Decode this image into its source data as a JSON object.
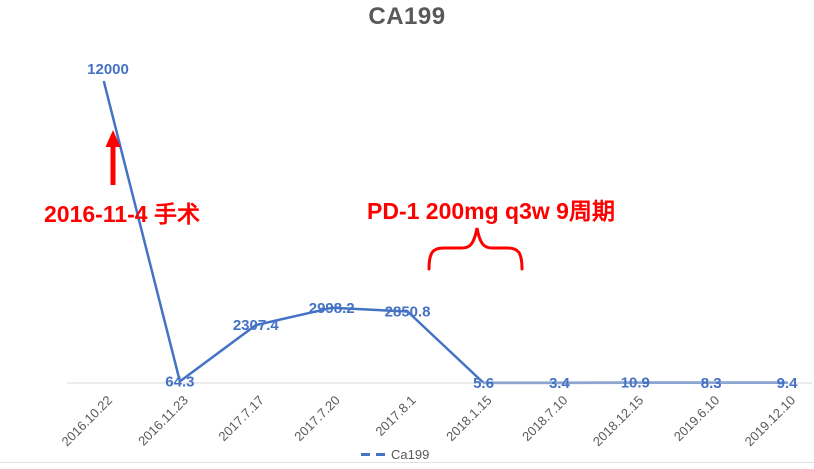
{
  "title": "CA199",
  "colors": {
    "series_line": "#4472C4",
    "data_label": "#4472C4",
    "axis_line": "#D9D9D9",
    "title_text": "#595959",
    "tick_text": "#595959",
    "annotation_red": "#FF0000",
    "legend_text": "#595959"
  },
  "chart_data": {
    "type": "line",
    "title": "CA199",
    "categories": [
      "2016.10.22",
      "2016.11.23",
      "2017.7.17",
      "2017.7.20",
      "2017.8.1",
      "2018.1.15",
      "2018.7.10",
      "2018.12.15",
      "2019.6.10",
      "2019.12.10"
    ],
    "series": [
      {
        "name": "Ca199",
        "values": [
          12000,
          64.3,
          2307.4,
          2998.2,
          2850.8,
          5.6,
          3.4,
          10.9,
          8.3,
          9.4
        ]
      }
    ],
    "data_labels": [
      "12000",
      "64.3",
      "2307.4",
      "2998.2",
      "2850.8",
      "5.6",
      "3.4",
      "10.9",
      "8.3",
      "9.4"
    ],
    "ylim": [
      0,
      12000
    ],
    "grid": false,
    "y_axis_visible": false,
    "tick_rotation": -45,
    "legend_position": "bottom"
  },
  "annotations": {
    "surgery": {
      "text": "2016-11-4 手术",
      "marker": "up-arrow"
    },
    "treatment": {
      "text": "PD-1 200mg q3w 9周期",
      "marker": "horizontal-brace"
    }
  },
  "legend": {
    "label": "Ca199"
  }
}
